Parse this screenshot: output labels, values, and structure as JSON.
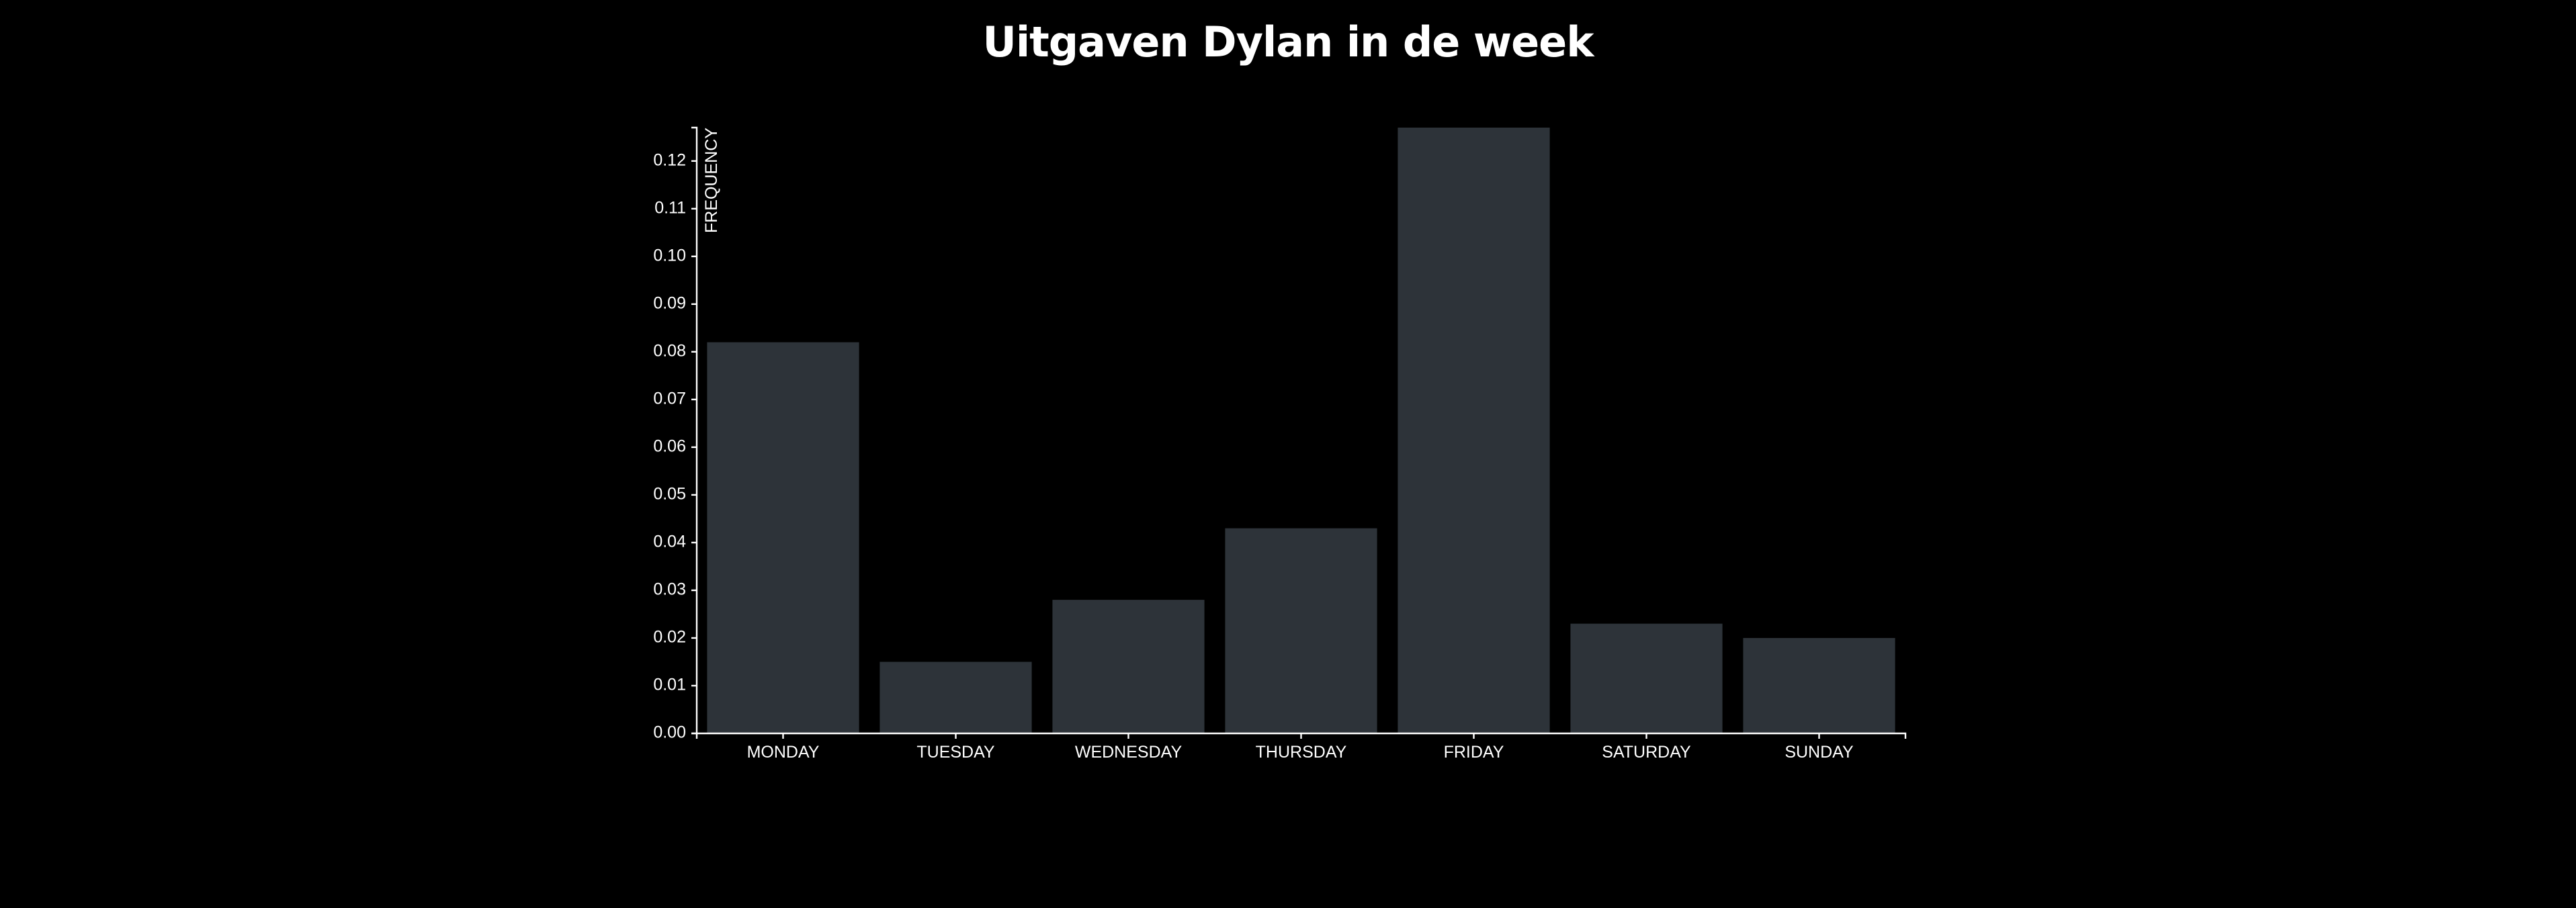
{
  "chart_data": {
    "type": "bar",
    "title": "Uitgaven Dylan in de week",
    "xlabel": "",
    "ylabel": "FREQUENCY",
    "categories": [
      "MONDAY",
      "TUESDAY",
      "WEDNESDAY",
      "THURSDAY",
      "FRIDAY",
      "SATURDAY",
      "SUNDAY"
    ],
    "values": [
      0.082,
      0.015,
      0.028,
      0.043,
      0.127,
      0.023,
      0.02
    ],
    "ylim": [
      0,
      0.127
    ],
    "yticks": [
      "0.00",
      "0.01",
      "0.02",
      "0.03",
      "0.04",
      "0.05",
      "0.06",
      "0.07",
      "0.08",
      "0.09",
      "0.10",
      "0.11",
      "0.12"
    ],
    "bar_color": "#2d3339",
    "background": "#000000",
    "axis_color": "#ffffff",
    "grid": false
  }
}
